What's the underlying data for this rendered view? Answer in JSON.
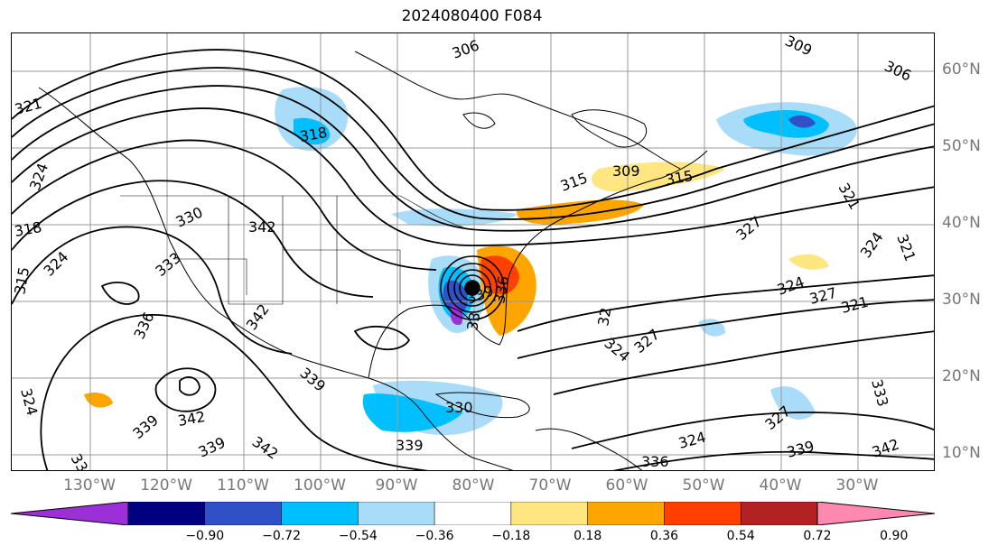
{
  "title": "2024080400 F084",
  "lat_labels": [
    "60°N",
    "50°N",
    "40°N",
    "30°N",
    "20°N",
    "10°N"
  ],
  "lon_labels": [
    "130°W",
    "120°W",
    "110°W",
    "100°W",
    "90°W",
    "80°W",
    "70°W",
    "60°W",
    "50°W",
    "40°W",
    "30°W"
  ],
  "colorbar": {
    "ticks": [
      "−0.90",
      "−0.72",
      "−0.54",
      "−0.36",
      "−0.18",
      "0.18",
      "0.36",
      "0.54",
      "0.72",
      "0.90"
    ],
    "colors": [
      "#9b30d9",
      "#000080",
      "#3050c8",
      "#00bfff",
      "#a8dcf8",
      "#ffffff",
      "#ffe680",
      "#ffa500",
      "#ff4000",
      "#b22222",
      "#ff88b0"
    ],
    "extend": "both"
  },
  "contour_labels": [
    "306",
    "309",
    "306",
    "321",
    "318",
    "324",
    "330",
    "342",
    "318",
    "315",
    "324",
    "333",
    "336",
    "342",
    "339",
    "342",
    "339",
    "339",
    "342",
    "324",
    "339",
    "330",
    "339",
    "336",
    "324",
    "336",
    "33",
    "339",
    "32",
    "324",
    "327",
    "327",
    "324",
    "327",
    "321",
    "324",
    "321",
    "321",
    "309",
    "315",
    "315",
    "333",
    "327",
    "339",
    "342"
  ],
  "storm_marker": "black-dot",
  "colors": {
    "map_lines": "#000000",
    "grid": "#999999",
    "axis_labels": "#777777"
  }
}
